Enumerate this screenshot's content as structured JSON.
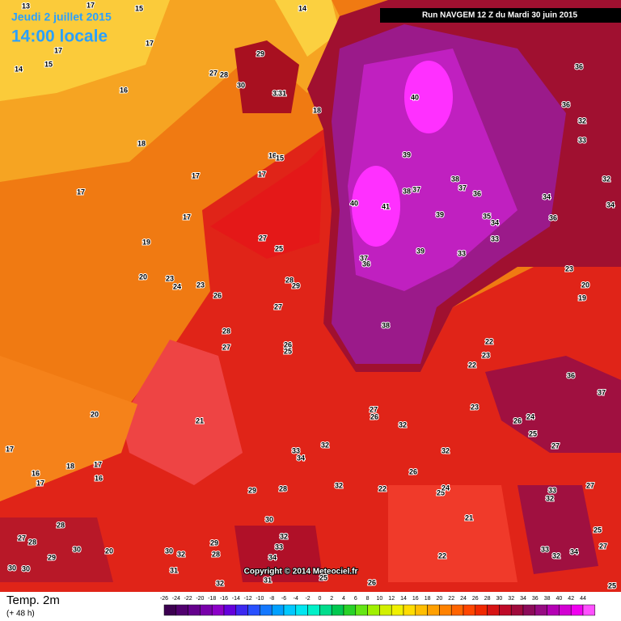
{
  "header": {
    "date": "Jeudi 2 juillet 2015",
    "time": "14:00 locale",
    "run": "Run NAVGEM 12 Z du Mardi 30 juin 2015"
  },
  "footer": {
    "variable": "Temp. 2m",
    "lead": "(+ 48 h)",
    "copyright": "Copyright © 2014 Meteociel.fr"
  },
  "scale": {
    "ticks": [
      -26,
      -24,
      -22,
      -20,
      -18,
      -16,
      -14,
      -12,
      -10,
      -8,
      -6,
      -4,
      -2,
      0,
      2,
      4,
      6,
      8,
      10,
      12,
      14,
      16,
      18,
      20,
      22,
      24,
      26,
      28,
      30,
      32,
      34,
      36,
      38,
      40,
      42,
      44
    ],
    "colors": [
      "#3c0050",
      "#50006e",
      "#64008c",
      "#7800aa",
      "#8c00c8",
      "#6400dc",
      "#3c28f0",
      "#2850ff",
      "#1478ff",
      "#00a0ff",
      "#00c8ff",
      "#00e6f0",
      "#00f0c8",
      "#00dc8c",
      "#00c850",
      "#28d228",
      "#64e614",
      "#a0f000",
      "#d2f000",
      "#f0f000",
      "#ffdc00",
      "#ffbe00",
      "#ffa000",
      "#ff8200",
      "#ff6400",
      "#ff4600",
      "#f02800",
      "#d71414",
      "#be0a28",
      "#a00a3c",
      "#8c0a5a",
      "#960a82",
      "#b400b4",
      "#d200d2",
      "#f000f0",
      "#ff50ff"
    ]
  },
  "labels": [
    29,
    27,
    28,
    30,
    32,
    31,
    18,
    16,
    15,
    17,
    17,
    17,
    17,
    18,
    16,
    17,
    15,
    14,
    13,
    17,
    14,
    15,
    17,
    19,
    20,
    23,
    24,
    23,
    26,
    25,
    27,
    28,
    29,
    27,
    28,
    27,
    26,
    25,
    40,
    39,
    40,
    41,
    38,
    37,
    36,
    38,
    37,
    39,
    35,
    34,
    33,
    33,
    39,
    37,
    36,
    38,
    36,
    36,
    32,
    33,
    32,
    34,
    34,
    36,
    23,
    20,
    19,
    22,
    23,
    22,
    23,
    26,
    24,
    25,
    27,
    37,
    36,
    27,
    26,
    32,
    33,
    34,
    32,
    32,
    26,
    22,
    25,
    24,
    21,
    22,
    32,
    29,
    28,
    30,
    32,
    33,
    34,
    31,
    32,
    29,
    28,
    30,
    32,
    31,
    20,
    30,
    28,
    27,
    28,
    29,
    30,
    30,
    20,
    21,
    17,
    16,
    17,
    18,
    17,
    16,
    33,
    32,
    33,
    32,
    34,
    27,
    25,
    27,
    25,
    26,
    25
  ]
}
